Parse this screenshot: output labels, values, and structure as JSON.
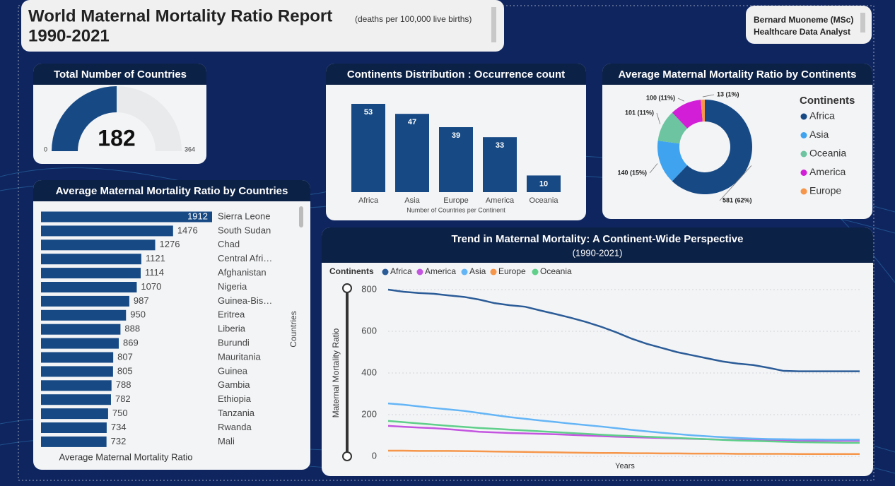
{
  "header": {
    "title": "World Maternal Mortality Ratio Report",
    "unit": "(deaths per 100,000 live births)",
    "period": "1990-2021",
    "author": "Bernard Muoneme (MSc)",
    "role": "Healthcare Data Analyst"
  },
  "chart_data": [
    {
      "type": "gauge",
      "title": "Total Number of Countries",
      "value": 182,
      "ylim": [
        0,
        364
      ],
      "color": "#174a85"
    },
    {
      "type": "bar",
      "title": "Continents Distribution : Occurrence count",
      "x_label": "Number of Countries per Continent",
      "categories": [
        "Africa",
        "Asia",
        "Europe",
        "America",
        "Oceania"
      ],
      "values": [
        53,
        47,
        39,
        33,
        10
      ],
      "color": "#174a85"
    },
    {
      "type": "donut",
      "title": "Average Maternal Mortality Ratio by Continents",
      "legend_title": "Continents",
      "categories": [
        "Africa",
        "Asia",
        "Oceania",
        "America",
        "Europe"
      ],
      "values": [
        581,
        140,
        101,
        100,
        13
      ],
      "value_labels": [
        "581 (62%)",
        "140 (15%)",
        "101 (11%)",
        "100 (11%)",
        "13 (1%)"
      ],
      "colors": [
        "#174a85",
        "#3fa3f0",
        "#6cc4a0",
        "#d21ed6",
        "#f5964a"
      ]
    },
    {
      "type": "hbar",
      "title": "Average Maternal Mortality Ratio by Countries",
      "x_label": "Average Maternal Mortality Ratio",
      "y_label": "Countries",
      "categories": [
        "Sierra Leone",
        "South Sudan",
        "Chad",
        "Central Afri…",
        "Afghanistan",
        "Nigeria",
        "Guinea-Bis…",
        "Eritrea",
        "Liberia",
        "Burundi",
        "Mauritania",
        "Guinea",
        "Gambia",
        "Ethiopia",
        "Tanzania",
        "Rwanda",
        "Mali"
      ],
      "values": [
        1912,
        1476,
        1276,
        1121,
        1114,
        1070,
        987,
        950,
        888,
        869,
        807,
        805,
        788,
        782,
        750,
        734,
        732
      ],
      "color": "#174a85"
    },
    {
      "type": "line",
      "title": "Trend in Maternal Mortality: A Continent-Wide Perspective",
      "subtitle": "(1990-2021)",
      "legend_title": "Continents",
      "x_label": "Years",
      "y_label": "Maternal Mortality Ratio",
      "ylim": [
        0,
        800
      ],
      "yticks": [
        0,
        200,
        400,
        600,
        800
      ],
      "grid": true,
      "series": [
        {
          "name": "Africa",
          "color": "#2b5c97",
          "values": [
            800,
            790,
            784,
            780,
            772,
            765,
            752,
            735,
            725,
            718,
            700,
            683,
            665,
            645,
            622,
            595,
            565,
            540,
            520,
            500,
            485,
            470,
            455,
            445,
            438,
            425,
            410,
            408,
            408,
            408,
            408,
            408
          ]
        },
        {
          "name": "America",
          "color": "#c455e0",
          "values": [
            146,
            142,
            138,
            135,
            130,
            124,
            118,
            115,
            112,
            110,
            108,
            106,
            103,
            100,
            97,
            94,
            92,
            90,
            88,
            86,
            84,
            82,
            80,
            79,
            78,
            77,
            76,
            76,
            75,
            75,
            75,
            75
          ]
        },
        {
          "name": "Asia",
          "color": "#64b5f6",
          "values": [
            254,
            248,
            240,
            232,
            225,
            218,
            208,
            198,
            188,
            180,
            172,
            165,
            157,
            150,
            143,
            135,
            127,
            120,
            113,
            107,
            101,
            96,
            92,
            88,
            85,
            83,
            82,
            81,
            81,
            80,
            80,
            80
          ]
        },
        {
          "name": "Europe",
          "color": "#f5964a",
          "values": [
            27,
            27,
            26,
            26,
            26,
            25,
            24,
            23,
            22,
            21,
            20,
            19,
            18,
            17,
            16,
            16,
            15,
            15,
            14,
            14,
            13,
            13,
            13,
            12,
            12,
            12,
            12,
            11,
            11,
            11,
            11,
            11
          ]
        },
        {
          "name": "Oceania",
          "color": "#5fcf8a",
          "values": [
            170,
            164,
            158,
            152,
            146,
            141,
            136,
            132,
            128,
            124,
            120,
            116,
            112,
            108,
            104,
            100,
            97,
            94,
            91,
            88,
            85,
            82,
            79,
            76,
            74,
            72,
            70,
            68,
            67,
            66,
            65,
            65
          ]
        }
      ]
    }
  ]
}
